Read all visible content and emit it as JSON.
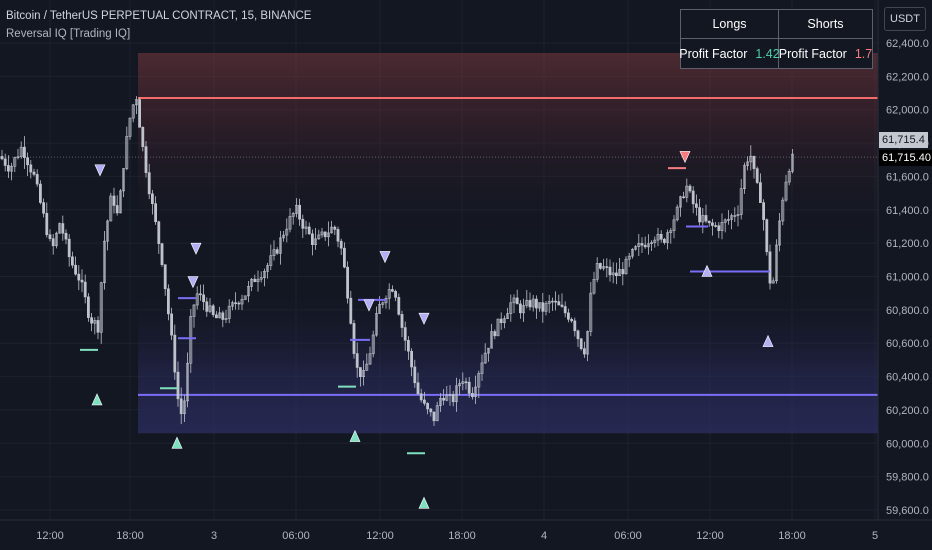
{
  "header": {
    "symbol_line": "Bitcoin / TetherUS PERPETUAL CONTRACT, 15, BINANCE",
    "indicator_line": "Reversal IQ [Trading IQ]"
  },
  "currency_button": "USDT",
  "stats_table": {
    "col1_title": "Longs",
    "col2_title": "Shorts",
    "long_label": "Profit Factor",
    "long_value": "1.42",
    "short_label": "Profit Factor",
    "short_value": "1.7",
    "long_color": "#4ecfa6",
    "short_color": "#f77c80"
  },
  "price_tags": {
    "last_tag": "61,715.4",
    "crosshair_tag": "61,715.40"
  },
  "colors": {
    "background": "#131722",
    "candle": "#bfc3cc",
    "upper_line": "#f26c6c",
    "lower_line": "#7b6ef6",
    "long_signal": "#7fe0bf",
    "short_signal": "#b4aef5",
    "short_signal_red": "#f77c80"
  },
  "chart_data": {
    "type": "candlestick",
    "y_ticks": [
      "62,400.0",
      "62,200.0",
      "62,000.0",
      "61,800.0",
      "61,600.0",
      "61,400.0",
      "61,200.0",
      "61,000.0",
      "60,800.0",
      "60,600.0",
      "60,400.0",
      "60,200.0",
      "60,000.0",
      "59,800.0",
      "59,600.0"
    ],
    "y_values": [
      62400,
      62200,
      62000,
      61800,
      61600,
      61400,
      61200,
      61000,
      60800,
      60600,
      60400,
      60200,
      60000,
      59800,
      59600
    ],
    "x_ticks": [
      "12:00",
      "18:00",
      "3",
      "06:00",
      "12:00",
      "18:00",
      "4",
      "06:00",
      "12:00",
      "18:00",
      "5"
    ],
    "ylim": [
      59540,
      62480
    ],
    "upper_zone": {
      "top": 62340,
      "level": 62070
    },
    "lower_zone": {
      "bottom": 60060,
      "level": 60290
    },
    "close_price": 61715.4,
    "price_path": [
      [
        0,
        61720
      ],
      [
        10,
        61650
      ],
      [
        22,
        61780
      ],
      [
        34,
        61600
      ],
      [
        44,
        61350
      ],
      [
        52,
        61150
      ],
      [
        60,
        61330
      ],
      [
        70,
        61100
      ],
      [
        80,
        60980
      ],
      [
        90,
        60750
      ],
      [
        98,
        60700
      ],
      [
        104,
        61200
      ],
      [
        112,
        61500
      ],
      [
        118,
        61350
      ],
      [
        124,
        61700
      ],
      [
        130,
        61950
      ],
      [
        136,
        62100
      ],
      [
        142,
        61800
      ],
      [
        150,
        61500
      ],
      [
        156,
        61300
      ],
      [
        162,
        61100
      ],
      [
        168,
        60800
      ],
      [
        174,
        60500
      ],
      [
        180,
        60150
      ],
      [
        186,
        60300
      ],
      [
        190,
        60700
      ],
      [
        196,
        60900
      ],
      [
        204,
        60850
      ],
      [
        214,
        60750
      ],
      [
        224,
        60750
      ],
      [
        236,
        60850
      ],
      [
        246,
        60900
      ],
      [
        256,
        61000
      ],
      [
        266,
        61050
      ],
      [
        276,
        61150
      ],
      [
        286,
        61300
      ],
      [
        296,
        61400
      ],
      [
        304,
        61300
      ],
      [
        314,
        61200
      ],
      [
        324,
        61250
      ],
      [
        334,
        61300
      ],
      [
        342,
        61150
      ],
      [
        350,
        60800
      ],
      [
        356,
        60450
      ],
      [
        364,
        60400
      ],
      [
        372,
        60600
      ],
      [
        378,
        60800
      ],
      [
        386,
        60900
      ],
      [
        394,
        60950
      ],
      [
        402,
        60700
      ],
      [
        410,
        60500
      ],
      [
        418,
        60300
      ],
      [
        426,
        60200
      ],
      [
        434,
        60150
      ],
      [
        442,
        60300
      ],
      [
        452,
        60250
      ],
      [
        462,
        60400
      ],
      [
        472,
        60300
      ],
      [
        482,
        60500
      ],
      [
        492,
        60650
      ],
      [
        502,
        60750
      ],
      [
        512,
        60850
      ],
      [
        522,
        60800
      ],
      [
        532,
        60850
      ],
      [
        542,
        60800
      ],
      [
        552,
        60850
      ],
      [
        562,
        60800
      ],
      [
        572,
        60750
      ],
      [
        580,
        60600
      ],
      [
        586,
        60550
      ],
      [
        590,
        60850
      ],
      [
        596,
        61050
      ],
      [
        604,
        61050
      ],
      [
        614,
        61000
      ],
      [
        624,
        61050
      ],
      [
        634,
        61150
      ],
      [
        644,
        61200
      ],
      [
        654,
        61250
      ],
      [
        662,
        61200
      ],
      [
        670,
        61300
      ],
      [
        678,
        61400
      ],
      [
        686,
        61550
      ],
      [
        692,
        61450
      ],
      [
        700,
        61350
      ],
      [
        710,
        61300
      ],
      [
        720,
        61300
      ],
      [
        730,
        61350
      ],
      [
        738,
        61400
      ],
      [
        744,
        61650
      ],
      [
        750,
        61750
      ],
      [
        756,
        61550
      ],
      [
        762,
        61450
      ],
      [
        768,
        61050
      ],
      [
        772,
        60900
      ],
      [
        776,
        61150
      ],
      [
        782,
        61450
      ],
      [
        788,
        61650
      ],
      [
        794,
        61720
      ]
    ],
    "long_signals": [
      {
        "x": 97,
        "price": 60260
      },
      {
        "x": 177,
        "price": 60000
      },
      {
        "x": 355,
        "price": 60040
      },
      {
        "x": 424,
        "price": 59640
      },
      {
        "x": 707,
        "price": 61030
      },
      {
        "x": 768,
        "price": 60610
      }
    ],
    "short_signals": [
      {
        "x": 100,
        "price": 61640
      },
      {
        "x": 196,
        "price": 61170
      },
      {
        "x": 193,
        "price": 60970
      },
      {
        "x": 369,
        "price": 60830
      },
      {
        "x": 385,
        "price": 61120
      },
      {
        "x": 424,
        "price": 60750
      },
      {
        "x": 685,
        "price": 61720,
        "red": true
      }
    ],
    "entry_marks": [
      {
        "x1": 80,
        "x2": 98,
        "price": 60560,
        "kind": "long"
      },
      {
        "x1": 160,
        "x2": 178,
        "price": 60330,
        "kind": "long"
      },
      {
        "x1": 338,
        "x2": 356,
        "price": 60340,
        "kind": "long"
      },
      {
        "x1": 407,
        "x2": 425,
        "price": 59940,
        "kind": "long"
      },
      {
        "x1": 178,
        "x2": 196,
        "price": 60870,
        "kind": "short"
      },
      {
        "x1": 178,
        "x2": 196,
        "price": 60630,
        "kind": "short"
      },
      {
        "x1": 350,
        "x2": 370,
        "price": 60620,
        "kind": "short"
      },
      {
        "x1": 358,
        "x2": 386,
        "price": 60860,
        "kind": "short"
      },
      {
        "x1": 668,
        "x2": 686,
        "price": 61650,
        "kind": "short-red"
      },
      {
        "x1": 686,
        "x2": 708,
        "price": 61300,
        "kind": "short"
      },
      {
        "x1": 690,
        "x2": 770,
        "price": 61030,
        "kind": "short"
      }
    ]
  }
}
